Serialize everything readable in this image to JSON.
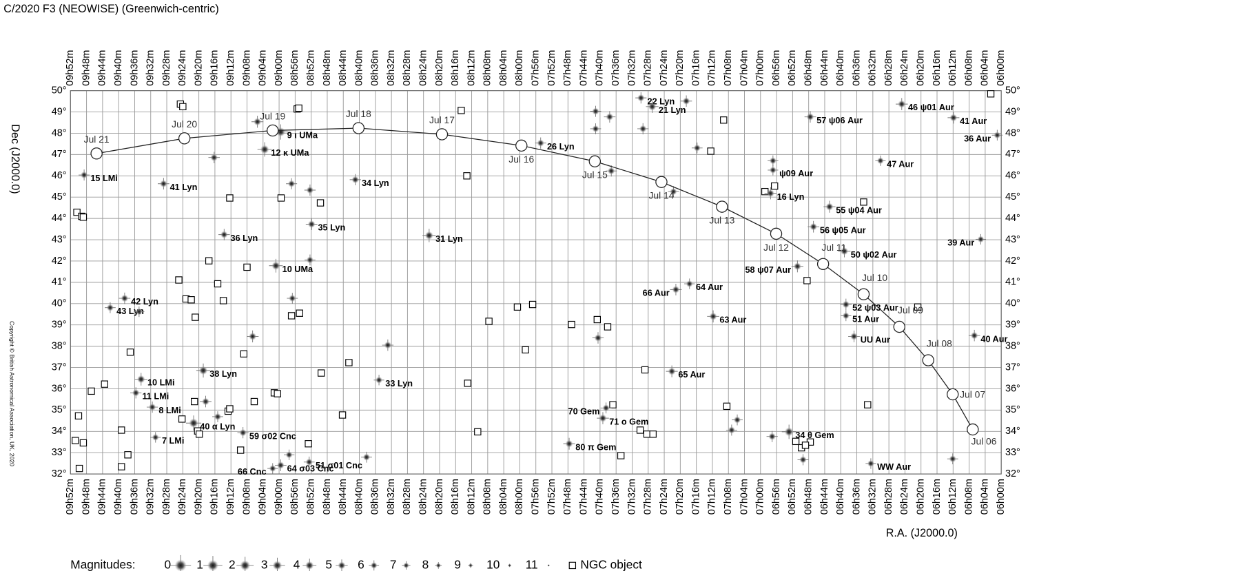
{
  "chart_data": {
    "type": "scatter",
    "title": "C/2020 F3 (NEOWISE)  (Greenwich-centric)",
    "ylabel": "Dec (J2000.0)",
    "xlabel": "R.A. (J2000.0)",
    "copyright": "Copyright © British Astronomical Association, UK, 2020",
    "grid": true,
    "xlim": [
      592,
      360
    ],
    "ylim": [
      32,
      50
    ],
    "xticks": [
      {
        "value": 592,
        "label": "09h52m"
      },
      {
        "value": 588,
        "label": "09h48m"
      },
      {
        "value": 584,
        "label": "09h44m"
      },
      {
        "value": 580,
        "label": "09h40m"
      },
      {
        "value": 576,
        "label": "09h36m"
      },
      {
        "value": 572,
        "label": "09h32m"
      },
      {
        "value": 568,
        "label": "09h28m"
      },
      {
        "value": 564,
        "label": "09h24m"
      },
      {
        "value": 560,
        "label": "09h20m"
      },
      {
        "value": 556,
        "label": "09h16m"
      },
      {
        "value": 552,
        "label": "09h12m"
      },
      {
        "value": 548,
        "label": "09h08m"
      },
      {
        "value": 544,
        "label": "09h04m"
      },
      {
        "value": 540,
        "label": "09h00m"
      },
      {
        "value": 536,
        "label": "08h56m"
      },
      {
        "value": 532,
        "label": "08h52m"
      },
      {
        "value": 528,
        "label": "08h48m"
      },
      {
        "value": 524,
        "label": "08h44m"
      },
      {
        "value": 520,
        "label": "08h40m"
      },
      {
        "value": 516,
        "label": "08h36m"
      },
      {
        "value": 512,
        "label": "08h32m"
      },
      {
        "value": 508,
        "label": "08h28m"
      },
      {
        "value": 504,
        "label": "08h24m"
      },
      {
        "value": 500,
        "label": "08h20m"
      },
      {
        "value": 496,
        "label": "08h16m"
      },
      {
        "value": 492,
        "label": "08h12m"
      },
      {
        "value": 488,
        "label": "08h08m"
      },
      {
        "value": 484,
        "label": "08h04m"
      },
      {
        "value": 480,
        "label": "08h00m"
      },
      {
        "value": 476,
        "label": "07h56m"
      },
      {
        "value": 472,
        "label": "07h52m"
      },
      {
        "value": 468,
        "label": "07h48m"
      },
      {
        "value": 464,
        "label": "07h44m"
      },
      {
        "value": 460,
        "label": "07h40m"
      },
      {
        "value": 456,
        "label": "07h36m"
      },
      {
        "value": 452,
        "label": "07h32m"
      },
      {
        "value": 448,
        "label": "07h28m"
      },
      {
        "value": 444,
        "label": "07h24m"
      },
      {
        "value": 440,
        "label": "07h20m"
      },
      {
        "value": 436,
        "label": "07h16m"
      },
      {
        "value": 432,
        "label": "07h12m"
      },
      {
        "value": 428,
        "label": "07h08m"
      },
      {
        "value": 424,
        "label": "07h04m"
      },
      {
        "value": 420,
        "label": "07h00m"
      },
      {
        "value": 416,
        "label": "06h56m"
      },
      {
        "value": 412,
        "label": "06h52m"
      },
      {
        "value": 408,
        "label": "06h48m"
      },
      {
        "value": 404,
        "label": "06h44m"
      },
      {
        "value": 400,
        "label": "06h40m"
      },
      {
        "value": 396,
        "label": "06h36m"
      },
      {
        "value": 392,
        "label": "06h32m"
      },
      {
        "value": 388,
        "label": "06h28m"
      },
      {
        "value": 384,
        "label": "06h24m"
      },
      {
        "value": 380,
        "label": "06h20m"
      },
      {
        "value": 376,
        "label": "06h16m"
      },
      {
        "value": 372,
        "label": "06h12m"
      },
      {
        "value": 368,
        "label": "06h08m"
      },
      {
        "value": 364,
        "label": "06h04m"
      },
      {
        "value": 360,
        "label": "06h00m"
      }
    ],
    "yticks": [
      {
        "value": 50,
        "label": "50°"
      },
      {
        "value": 49,
        "label": "49°"
      },
      {
        "value": 48,
        "label": "48°"
      },
      {
        "value": 47,
        "label": "47°"
      },
      {
        "value": 46,
        "label": "46°"
      },
      {
        "value": 45,
        "label": "45°"
      },
      {
        "value": 44,
        "label": "44°"
      },
      {
        "value": 43,
        "label": "43°"
      },
      {
        "value": 42,
        "label": "42°"
      },
      {
        "value": 41,
        "label": "41°"
      },
      {
        "value": 40,
        "label": "40°"
      },
      {
        "value": 39,
        "label": "39°"
      },
      {
        "value": 38,
        "label": "38°"
      },
      {
        "value": 37,
        "label": "37°"
      },
      {
        "value": 36,
        "label": "36°"
      },
      {
        "value": 35,
        "label": "35°"
      },
      {
        "value": 34,
        "label": "34°"
      },
      {
        "value": 33,
        "label": "33°"
      },
      {
        "value": 32,
        "label": "32°"
      }
    ],
    "path": {
      "labels": [
        "Jul 21",
        "Jul 20",
        "Jul 19",
        "Jul 18",
        "Jul 17",
        "Jul 16",
        "Jul 15",
        "Jul 14",
        "Jul 13",
        "Jul 12",
        "Jul 11",
        "Jul 10",
        "Jul 09",
        "Jul 08",
        "Jul 07",
        "Jul 06"
      ],
      "x": [
        585.5,
        563.6,
        541.6,
        520.2,
        499.4,
        479.6,
        461.3,
        444.7,
        429.6,
        416.1,
        404.4,
        394.3,
        385.4,
        378.2,
        372.1,
        367.1
      ],
      "y": [
        47.05,
        47.76,
        48.13,
        48.24,
        47.95,
        47.42,
        46.68,
        45.71,
        44.55,
        43.28,
        41.86,
        40.44,
        38.91,
        37.34,
        35.74,
        34.09
      ]
    },
    "stars": {
      "labels": [
        "15 LMi",
        "41 Lyn",
        "9 ι UMa",
        "12 κ UMa",
        "34 Lyn",
        "36 Lyn",
        "35 Lyn",
        "10 UMa",
        "42 Lyn",
        "43 Lyn",
        "38 Lyn",
        "10 LMi",
        "11 LMi",
        "8 LMi",
        "7 LMi",
        "40 α Lyn",
        "59 σ02 Cnc",
        "66 Cnc",
        "64 σ03 Cnc",
        "51 σ01 Cnc",
        "31 Lyn",
        "33 Lyn",
        "26 Lyn",
        "22 Lyn",
        "21 Lyn",
        "57 ψ06 Aur",
        "46 ψ01 Aur",
        "41 Aur",
        "36 Aur",
        "47 Aur",
        "ψ09 Aur",
        "16 Lyn",
        "55 ψ04 Aur",
        "56 ψ05 Aur",
        "50 ψ02 Aur",
        "39 Aur",
        "58 ψ07 Aur",
        "66 Aur",
        "64 Aur",
        "63 Aur",
        "52 ψ03 Aur",
        "51 Aur",
        "UU Aur",
        "40 Aur",
        "65 Aur",
        "70 Gem",
        "71 ο Gem",
        "80 π Gem",
        "34 θ Gem",
        "WW Aur",
        null,
        null,
        null,
        null,
        null,
        null,
        null,
        null,
        null,
        null,
        null,
        null,
        null,
        null,
        null,
        null,
        null,
        null,
        null,
        null,
        null,
        null,
        null,
        null,
        null,
        null,
        null,
        null
      ],
      "x": [
        588.6,
        568.8,
        539.6,
        543.6,
        521.0,
        553.7,
        531.9,
        540.8,
        578.5,
        582.1,
        558.9,
        574.4,
        575.7,
        571.6,
        570.8,
        561.3,
        549.0,
        541.6,
        539.6,
        532.5,
        502.6,
        515.1,
        474.8,
        449.8,
        447.0,
        407.6,
        384.8,
        371.9,
        361.0,
        390.1,
        416.9,
        417.5,
        402.8,
        406.8,
        399.1,
        365.1,
        410.8,
        441.1,
        437.7,
        431.8,
        398.7,
        398.7,
        396.7,
        366.7,
        442.1,
        458.5,
        459.3,
        467.7,
        412.9,
        392.5,
        545.4,
        556.2,
        536.9,
        532.3,
        532.3,
        546.6,
        536.7,
        574.9,
        558.3,
        555.3,
        537.5,
        518.2,
        512.9,
        461.1,
        457.6,
        461.1,
        449.3,
        438.5,
        435.8,
        457.2,
        441.7,
        416.9,
        409.4,
        372.1,
        417.1,
        427.2,
        425.8,
        460.5
      ],
      "y": [
        46.04,
        45.63,
        48.06,
        47.24,
        45.82,
        43.24,
        43.73,
        41.78,
        40.25,
        39.81,
        36.86,
        36.45,
        35.81,
        35.14,
        33.72,
        34.39,
        33.94,
        32.26,
        32.41,
        32.56,
        43.2,
        36.41,
        47.54,
        49.66,
        49.25,
        48.77,
        49.37,
        48.73,
        47.91,
        46.71,
        46.27,
        45.18,
        44.55,
        43.61,
        42.46,
        43.02,
        41.75,
        40.66,
        40.93,
        39.4,
        39.96,
        39.43,
        38.46,
        38.5,
        36.82,
        35.1,
        34.62,
        33.42,
        33.98,
        32.49,
        48.54,
        46.86,
        45.63,
        45.33,
        42.05,
        38.46,
        40.25,
        39.62,
        35.4,
        34.69,
        32.9,
        32.79,
        38.05,
        49.03,
        48.77,
        48.21,
        48.21,
        49.51,
        47.31,
        46.23,
        45.26,
        46.71,
        32.67,
        32.71,
        33.76,
        34.06,
        34.54,
        38.39
      ],
      "magnitudes": [
        5.5,
        5.2,
        3.1,
        3.6,
        5.4,
        5.3,
        5.2,
        4.0,
        5.3,
        5.6,
        3.8,
        4.6,
        5.4,
        5.4,
        5.8,
        3.1,
        5.4,
        5.8,
        5.2,
        5.6,
        4.2,
        5.8,
        5.4,
        5.4,
        4.6,
        5.2,
        4.9,
        5.1,
        5.7,
        5.9,
        5.8,
        4.9,
        5.0,
        5.2,
        4.8,
        5.9,
        5.0,
        5.2,
        5.8,
        4.9,
        5.2,
        5.7,
        5.2,
        5.3,
        5.1,
        5.6,
        4.9,
        5.1,
        3.6,
        5.8,
        5.0,
        5.3,
        5.5,
        5.4,
        5.6,
        5.0,
        5.6,
        5.8,
        5.2,
        5.6,
        5.8,
        5.6,
        5.3,
        5.5,
        5.2,
        5.6,
        5.4,
        5.3,
        5.6,
        5.4,
        5.6,
        5.7,
        5.5,
        5.6,
        5.4,
        5.5,
        5.6,
        5.3
      ]
    },
    "ngc": {
      "x": [
        564.6,
        564.0,
        535.5,
        535.1,
        494.6,
        429.2,
        432.4,
        362.6,
        590.4,
        589.2,
        588.8,
        552.3,
        539.5,
        529.7,
        493.2,
        557.5,
        548.0,
        565.0,
        555.3,
        553.9,
        563.2,
        561.9,
        560.9,
        534.9,
        536.9,
        577.1,
        548.8,
        583.5,
        586.8,
        529.5,
        522.6,
        541.2,
        540.4,
        546.2,
        561.1,
        552.7,
        552.3,
        564.2,
        590.0,
        579.3,
        560.3,
        559.9,
        590.8,
        588.8,
        577.7,
        579.3,
        589.8,
        549.6,
        532.7,
        524.2,
        493.0,
        490.5,
        487.7,
        480.6,
        476.8,
        478.6,
        467.1,
        460.7,
        458.1,
        456.8,
        454.8,
        448.8,
        450.0,
        448.3,
        446.8,
        428.4,
        418.9,
        416.5,
        408.4,
        394.3,
        393.3,
        380.8,
        411.2,
        409.8,
        407.6,
        408.8
      ],
      "y": [
        49.37,
        49.25,
        49.14,
        49.18,
        49.07,
        48.62,
        47.16,
        49.85,
        44.29,
        44.1,
        44.06,
        44.96,
        44.96,
        44.73,
        46.0,
        42.01,
        41.71,
        41.11,
        40.93,
        40.14,
        40.22,
        40.18,
        39.36,
        39.55,
        39.43,
        37.72,
        37.64,
        36.22,
        35.89,
        36.74,
        37.23,
        35.81,
        35.77,
        35.4,
        35.4,
        34.95,
        35.06,
        34.58,
        34.73,
        34.06,
        34.02,
        33.87,
        33.57,
        33.46,
        32.9,
        32.34,
        32.26,
        33.12,
        33.42,
        34.77,
        36.26,
        33.98,
        39.17,
        39.84,
        39.96,
        37.83,
        39.02,
        39.25,
        38.91,
        35.25,
        32.86,
        36.89,
        34.06,
        33.87,
        33.87,
        35.18,
        45.26,
        45.52,
        41.08,
        44.77,
        35.25,
        39.84,
        33.53,
        33.23,
        33.5,
        33.35
      ]
    },
    "legend": {
      "title": "Magnitudes:",
      "magnitudes": [
        0,
        1,
        2,
        3,
        4,
        5,
        6,
        7,
        8,
        9,
        10,
        11
      ],
      "ngc_label": "NGC object"
    }
  }
}
